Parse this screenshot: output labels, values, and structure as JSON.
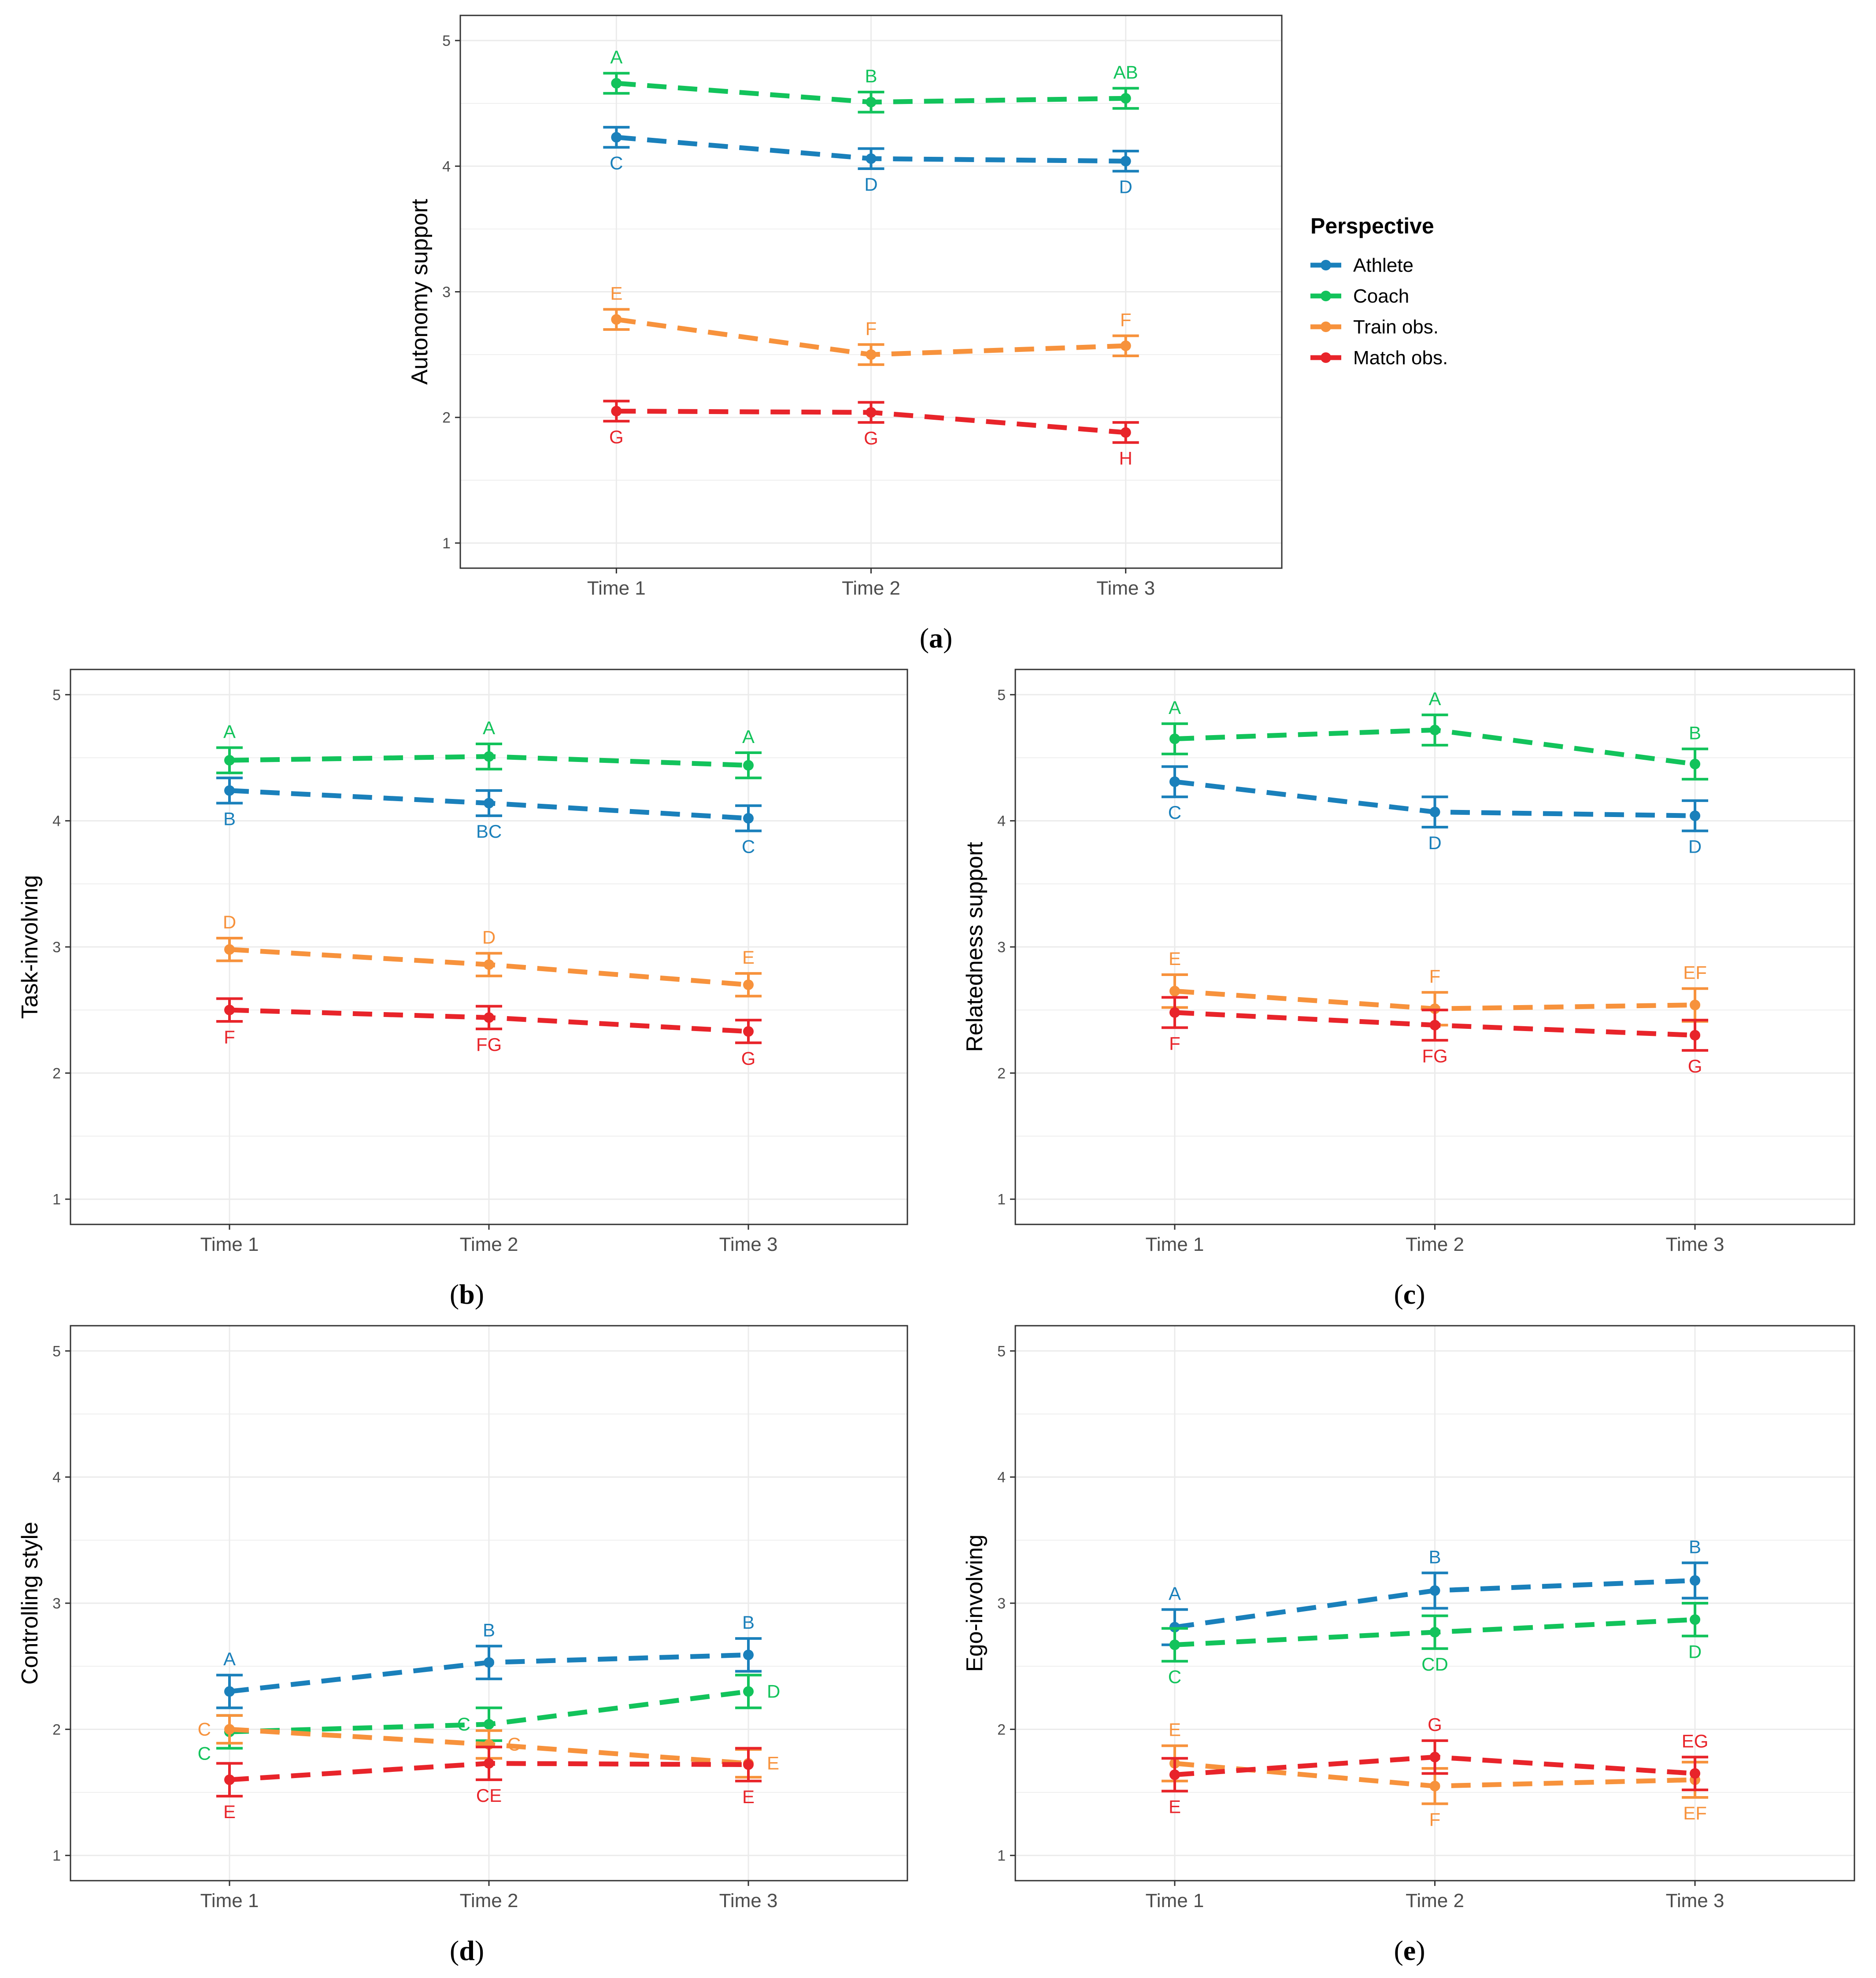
{
  "legend": {
    "title": "Perspective",
    "series_order": [
      "athlete",
      "coach",
      "train",
      "match"
    ]
  },
  "series_style": {
    "athlete": {
      "name": "Athlete",
      "color": "#1a80bb"
    },
    "coach": {
      "name": "Coach",
      "color": "#12c35b"
    },
    "train": {
      "name": "Train obs.",
      "color": "#f7923c"
    },
    "match": {
      "name": "Match obs.",
      "color": "#e8242a"
    }
  },
  "chart_data": [
    {
      "id": "a",
      "type": "line",
      "caption_open": "(",
      "caption_letter": "a",
      "caption_close": ")",
      "ylabel": "Autonomy support",
      "x": [
        "Time 1",
        "Time 2",
        "Time 3"
      ],
      "ylim": [
        0.8,
        5.2
      ],
      "yticks": [
        "1",
        "2",
        "3",
        "4",
        "5"
      ],
      "series": [
        {
          "key": "athlete",
          "name": "Athlete",
          "values": [
            4.23,
            4.06,
            4.04
          ],
          "se": [
            0.08,
            0.08,
            0.08
          ],
          "letters": [
            "C",
            "D",
            "D"
          ],
          "letter_pos": [
            "below",
            "below",
            "below"
          ]
        },
        {
          "key": "coach",
          "name": "Coach",
          "values": [
            4.66,
            4.51,
            4.54
          ],
          "se": [
            0.08,
            0.08,
            0.08
          ],
          "letters": [
            "A",
            "B",
            "AB"
          ],
          "letter_pos": [
            "above",
            "above",
            "above"
          ]
        },
        {
          "key": "train",
          "name": "Train obs.",
          "values": [
            2.78,
            2.5,
            2.57
          ],
          "se": [
            0.08,
            0.08,
            0.08
          ],
          "letters": [
            "E",
            "F",
            "F"
          ],
          "letter_pos": [
            "above",
            "above",
            "above"
          ]
        },
        {
          "key": "match",
          "name": "Match obs.",
          "values": [
            2.05,
            2.04,
            1.88
          ],
          "se": [
            0.08,
            0.08,
            0.08
          ],
          "letters": [
            "G",
            "G",
            "H"
          ],
          "letter_pos": [
            "below",
            "below",
            "below"
          ]
        }
      ]
    },
    {
      "id": "b",
      "type": "line",
      "caption_open": "(",
      "caption_letter": "b",
      "caption_close": ")",
      "ylabel": "Task-involving",
      "x": [
        "Time 1",
        "Time 2",
        "Time 3"
      ],
      "ylim": [
        0.8,
        5.2
      ],
      "yticks": [
        "1",
        "2",
        "3",
        "4",
        "5"
      ],
      "series": [
        {
          "key": "athlete",
          "name": "Athlete",
          "values": [
            4.24,
            4.14,
            4.02
          ],
          "se": [
            0.1,
            0.1,
            0.1
          ],
          "letters": [
            "B",
            "BC",
            "C"
          ],
          "letter_pos": [
            "below",
            "below",
            "below"
          ]
        },
        {
          "key": "coach",
          "name": "Coach",
          "values": [
            4.48,
            4.51,
            4.44
          ],
          "se": [
            0.1,
            0.1,
            0.1
          ],
          "letters": [
            "A",
            "A",
            "A"
          ],
          "letter_pos": [
            "above",
            "above",
            "above"
          ]
        },
        {
          "key": "train",
          "name": "Train obs.",
          "values": [
            2.98,
            2.86,
            2.7
          ],
          "se": [
            0.09,
            0.09,
            0.09
          ],
          "letters": [
            "D",
            "D",
            "E"
          ],
          "letter_pos": [
            "above",
            "above",
            "above"
          ]
        },
        {
          "key": "match",
          "name": "Match obs.",
          "values": [
            2.5,
            2.44,
            2.33
          ],
          "se": [
            0.09,
            0.09,
            0.09
          ],
          "letters": [
            "F",
            "FG",
            "G"
          ],
          "letter_pos": [
            "below",
            "below",
            "below"
          ]
        }
      ]
    },
    {
      "id": "c",
      "type": "line",
      "caption_open": "(",
      "caption_letter": "c",
      "caption_close": ")",
      "ylabel": "Relatedness support",
      "x": [
        "Time 1",
        "Time 2",
        "Time 3"
      ],
      "ylim": [
        0.8,
        5.2
      ],
      "yticks": [
        "1",
        "2",
        "3",
        "4",
        "5"
      ],
      "series": [
        {
          "key": "athlete",
          "name": "Athlete",
          "values": [
            4.31,
            4.07,
            4.04
          ],
          "se": [
            0.12,
            0.12,
            0.12
          ],
          "letters": [
            "C",
            "D",
            "D"
          ],
          "letter_pos": [
            "below",
            "below",
            "below"
          ]
        },
        {
          "key": "coach",
          "name": "Coach",
          "values": [
            4.65,
            4.72,
            4.45
          ],
          "se": [
            0.12,
            0.12,
            0.12
          ],
          "letters": [
            "A",
            "A",
            "B"
          ],
          "letter_pos": [
            "above",
            "above",
            "above"
          ]
        },
        {
          "key": "train",
          "name": "Train obs.",
          "values": [
            2.65,
            2.51,
            2.54
          ],
          "se": [
            0.13,
            0.13,
            0.13
          ],
          "letters": [
            "E",
            "F",
            "EF"
          ],
          "letter_pos": [
            "above",
            "above",
            "above"
          ]
        },
        {
          "key": "match",
          "name": "Match obs.",
          "values": [
            2.48,
            2.38,
            2.3
          ],
          "se": [
            0.12,
            0.12,
            0.12
          ],
          "letters": [
            "F",
            "FG",
            "G"
          ],
          "letter_pos": [
            "below",
            "below",
            "below"
          ]
        }
      ]
    },
    {
      "id": "d",
      "type": "line",
      "caption_open": "(",
      "caption_letter": "d",
      "caption_close": ")",
      "ylabel": "Controlling style",
      "x": [
        "Time 1",
        "Time 2",
        "Time 3"
      ],
      "ylim": [
        0.8,
        5.2
      ],
      "yticks": [
        "1",
        "2",
        "3",
        "4",
        "5"
      ],
      "series": [
        {
          "key": "athlete",
          "name": "Athlete",
          "values": [
            2.3,
            2.53,
            2.59
          ],
          "se": [
            0.13,
            0.13,
            0.13
          ],
          "letters": [
            "A",
            "B",
            "B"
          ],
          "letter_pos": [
            "above",
            "above",
            "above"
          ]
        },
        {
          "key": "coach",
          "name": "Coach",
          "values": [
            1.98,
            2.04,
            2.3
          ],
          "se": [
            0.13,
            0.13,
            0.13
          ],
          "letters": [
            "C",
            "C",
            "D"
          ],
          "letter_pos": [
            "below-left",
            "left",
            "right"
          ]
        },
        {
          "key": "train",
          "name": "Train obs.",
          "values": [
            2.0,
            1.88,
            1.73
          ],
          "se": [
            0.11,
            0.11,
            0.11
          ],
          "letters": [
            "C",
            "C",
            "E"
          ],
          "letter_pos": [
            "left",
            "right",
            "right"
          ]
        },
        {
          "key": "match",
          "name": "Match obs.",
          "values": [
            1.6,
            1.73,
            1.72
          ],
          "se": [
            0.13,
            0.13,
            0.13
          ],
          "letters": [
            "E",
            "CE",
            "E"
          ],
          "letter_pos": [
            "below",
            "below",
            "below"
          ]
        }
      ]
    },
    {
      "id": "e",
      "type": "line",
      "caption_open": "(",
      "caption_letter": "e",
      "caption_close": ")",
      "ylabel": "Ego-involving",
      "x": [
        "Time 1",
        "Time 2",
        "Time 3"
      ],
      "ylim": [
        0.8,
        5.2
      ],
      "yticks": [
        "1",
        "2",
        "3",
        "4",
        "5"
      ],
      "series": [
        {
          "key": "athlete",
          "name": "Athlete",
          "values": [
            2.81,
            3.1,
            3.18
          ],
          "se": [
            0.14,
            0.14,
            0.14
          ],
          "letters": [
            "A",
            "B",
            "B"
          ],
          "letter_pos": [
            "above",
            "above",
            "above"
          ]
        },
        {
          "key": "coach",
          "name": "Coach",
          "values": [
            2.67,
            2.77,
            2.87
          ],
          "se": [
            0.13,
            0.13,
            0.13
          ],
          "letters": [
            "C",
            "CD",
            "D"
          ],
          "letter_pos": [
            "below",
            "below",
            "below"
          ]
        },
        {
          "key": "train",
          "name": "Train obs.",
          "values": [
            1.73,
            1.55,
            1.6
          ],
          "se": [
            0.14,
            0.14,
            0.14
          ],
          "letters": [
            "E",
            "F",
            "EF"
          ],
          "letter_pos": [
            "above",
            "below",
            "below"
          ]
        },
        {
          "key": "match",
          "name": "Match obs.",
          "values": [
            1.64,
            1.78,
            1.65
          ],
          "se": [
            0.13,
            0.13,
            0.13
          ],
          "letters": [
            "E",
            "G",
            "EG"
          ],
          "letter_pos": [
            "below",
            "above",
            "above"
          ]
        }
      ]
    }
  ]
}
